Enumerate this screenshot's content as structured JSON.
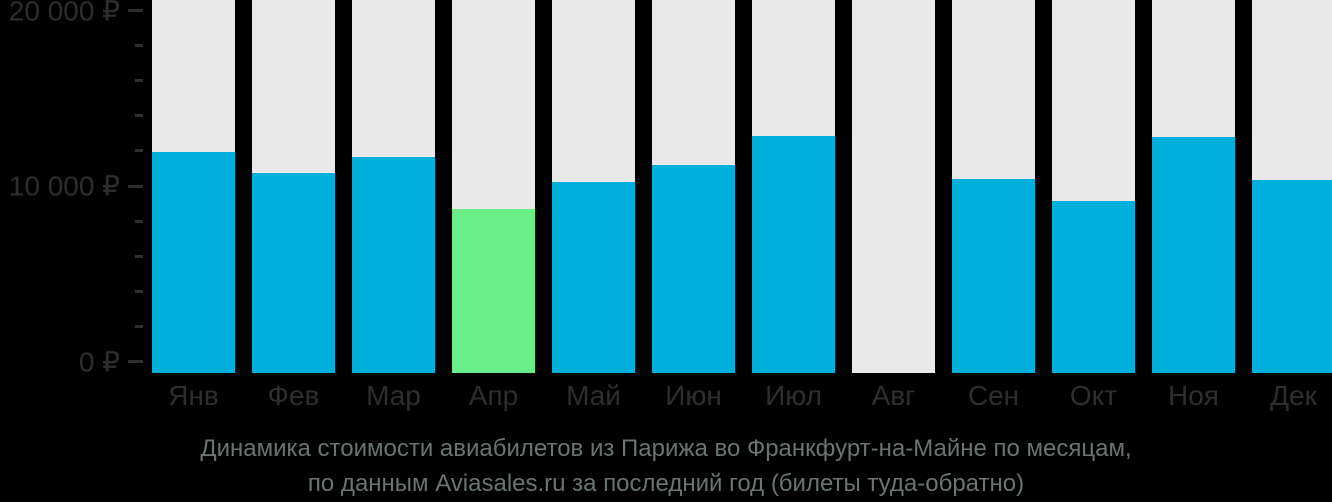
{
  "chart_data": {
    "type": "bar",
    "categories": [
      "Янв",
      "Фев",
      "Мар",
      "Апр",
      "Май",
      "Июн",
      "Июл",
      "Авг",
      "Сен",
      "Окт",
      "Ноя",
      "Дек"
    ],
    "values": [
      11900,
      10750,
      11600,
      8800,
      10250,
      11200,
      12750,
      null,
      10450,
      9250,
      12700,
      10400
    ],
    "highlight_index": 3,
    "no_data_index": 7,
    "ylim": [
      0,
      20000
    ],
    "y_tick_labels": [
      "20 000 ₽",
      "10 000 ₽",
      "0 ₽"
    ],
    "minor_tick_step": 2000,
    "grid": false,
    "legend": false,
    "xlabel": "",
    "ylabel": "",
    "title": "",
    "colors": {
      "background": "#000000",
      "bar": "#00afdc",
      "bar_highlight": "#69ee87",
      "column_background": "#e9e9e9",
      "axis_text": "#2e2e2e",
      "caption_text": "#6b7373"
    }
  },
  "caption": {
    "line1": "Динамика стоимости авиабилетов из Парижа во Франкфурт-на-Майне по месяцам,",
    "line2": "по данным Aviasales.ru за последний год (билеты туда-обратно)"
  }
}
